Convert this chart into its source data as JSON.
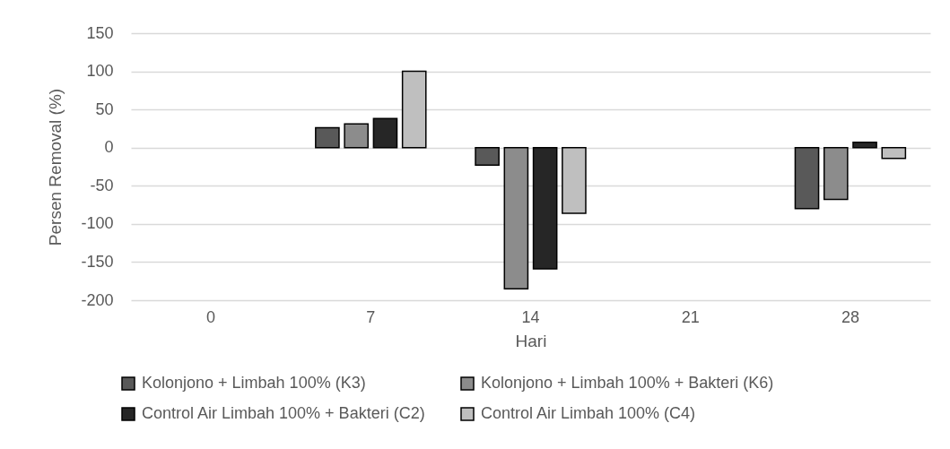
{
  "chart_data": {
    "type": "bar",
    "categories": [
      "0",
      "7",
      "14",
      "21",
      "28"
    ],
    "xlabel": "Hari",
    "ylabel": "Persen Removal (%)",
    "series": [
      {
        "name": "Kolonjono + Limbah 100% (K3)",
        "color": "#595959",
        "values": [
          null,
          26,
          -23,
          null,
          -80
        ]
      },
      {
        "name": "Kolonjono + Limbah 100% + Bakteri (K6)",
        "color": "#8c8c8c",
        "values": [
          null,
          31,
          -185,
          null,
          -68
        ]
      },
      {
        "name": "Control Air Limbah 100% + Bakteri (C2)",
        "color": "#262626",
        "values": [
          null,
          38,
          -159,
          null,
          7
        ]
      },
      {
        "name": "Control Air Limbah 100% (C4)",
        "color": "#bfbfbf",
        "values": [
          null,
          100,
          -86,
          null,
          -14
        ]
      }
    ],
    "ylim": [
      -200,
      150
    ],
    "yticks": [
      -200,
      -150,
      -100,
      -50,
      0,
      50,
      100,
      150
    ],
    "grid": "y",
    "legend": "bottom"
  }
}
